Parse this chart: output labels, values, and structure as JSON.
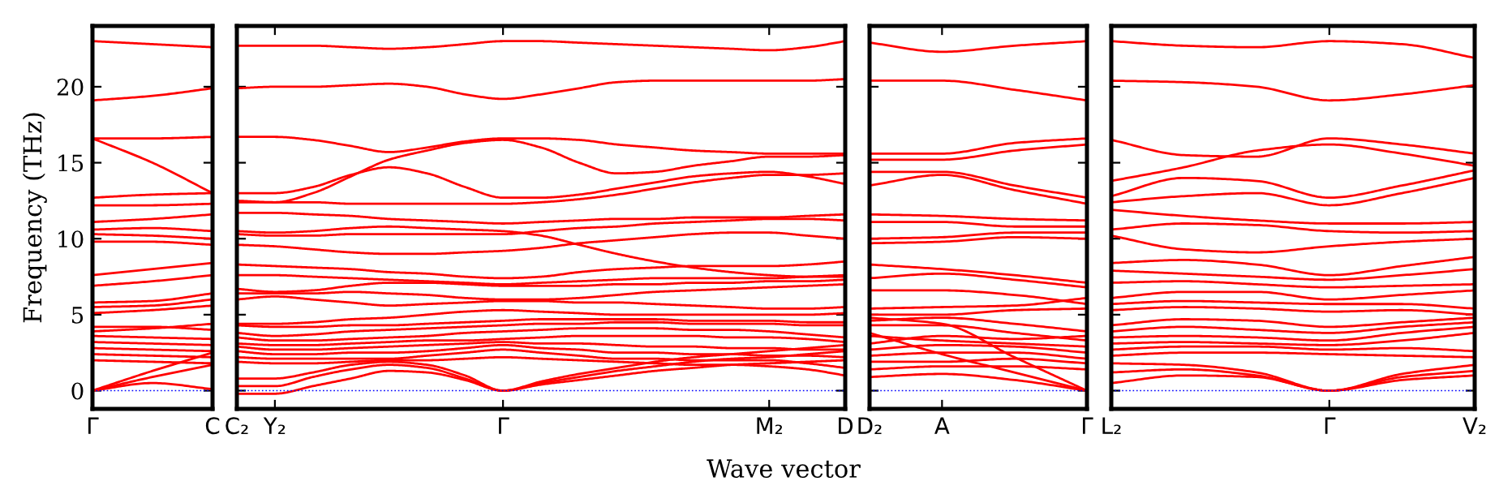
{
  "chart_data": [
    {
      "type": "line",
      "ylabel": "Frequency (THz)",
      "categories": [
        "Γ",
        null,
        "C"
      ],
      "ylim": [
        -1.2,
        24
      ],
      "yticks": [
        0,
        5,
        10,
        15,
        20
      ],
      "ref_lines": [
        {
          "axis": "y",
          "value": 0,
          "color": "#0000ff",
          "line_style": "dotted"
        }
      ],
      "series": [
        {
          "color": "#ff0000",
          "values": [
            23.0,
            22.8,
            22.6
          ]
        },
        {
          "color": "#ff0000",
          "values": [
            19.1,
            19.4,
            19.9
          ]
        },
        {
          "color": "#ff0000",
          "values": [
            16.6,
            16.6,
            16.7
          ]
        },
        {
          "color": "#ff0000",
          "values": [
            16.6,
            15.0,
            13.0
          ]
        },
        {
          "color": "#ff0000",
          "values": [
            12.7,
            12.9,
            13.0
          ]
        },
        {
          "color": "#ff0000",
          "values": [
            12.2,
            12.2,
            12.3
          ]
        },
        {
          "color": "#ff0000",
          "values": [
            11.1,
            11.3,
            11.6
          ]
        },
        {
          "color": "#ff0000",
          "values": [
            10.6,
            10.7,
            10.5
          ]
        },
        {
          "color": "#ff0000",
          "values": [
            10.3,
            10.2,
            10.0
          ]
        },
        {
          "color": "#ff0000",
          "values": [
            9.8,
            9.8,
            9.6
          ]
        },
        {
          "color": "#ff0000",
          "values": [
            7.6,
            8.0,
            8.4
          ]
        },
        {
          "color": "#ff0000",
          "values": [
            6.9,
            7.2,
            7.6
          ]
        },
        {
          "color": "#ff0000",
          "values": [
            5.8,
            5.9,
            6.4
          ]
        },
        {
          "color": "#ff0000",
          "values": [
            5.5,
            5.6,
            6.0
          ]
        },
        {
          "color": "#ff0000",
          "values": [
            5.1,
            5.3,
            5.6
          ]
        },
        {
          "color": "#ff0000",
          "values": [
            4.2,
            4.2,
            4.0
          ]
        },
        {
          "color": "#ff0000",
          "values": [
            3.9,
            4.1,
            4.4
          ]
        },
        {
          "color": "#ff0000",
          "values": [
            3.6,
            3.5,
            3.4
          ]
        },
        {
          "color": "#ff0000",
          "values": [
            3.2,
            3.1,
            3.0
          ]
        },
        {
          "color": "#ff0000",
          "values": [
            2.8,
            2.7,
            2.6
          ]
        },
        {
          "color": "#ff0000",
          "values": [
            2.4,
            2.3,
            2.2
          ]
        },
        {
          "color": "#ff0000",
          "values": [
            2.0,
            1.9,
            1.8
          ]
        },
        {
          "color": "#ff0000",
          "values": [
            0,
            1.3,
            2.5
          ]
        },
        {
          "color": "#ff0000",
          "values": [
            0,
            0.9,
            1.7
          ]
        },
        {
          "color": "#ff0000",
          "values": [
            0,
            0.5,
            0.1
          ]
        }
      ]
    },
    {
      "type": "line",
      "xlabel": "Wave vector",
      "tick_labels": "x",
      "categories": [
        "C₂",
        "Y₂",
        null,
        null,
        null,
        null,
        null,
        "Γ",
        null,
        null,
        null,
        null,
        null,
        null,
        "M₂",
        null,
        "D"
      ],
      "ylim": [
        -1.2,
        24
      ],
      "yticks": [
        0,
        5,
        10,
        15,
        20
      ],
      "ref_lines": [
        {
          "axis": "y",
          "value": 0,
          "color": "#0000ff",
          "line_style": "dotted"
        }
      ],
      "series": [
        {
          "color": "#ff0000",
          "values": [
            22.7,
            22.7,
            22.7,
            22.6,
            22.5,
            22.6,
            22.8,
            23.0,
            23.0,
            22.9,
            22.8,
            22.7,
            22.6,
            22.5,
            22.4,
            22.6,
            23.0
          ]
        },
        {
          "color": "#ff0000",
          "values": [
            19.9,
            20.0,
            20.0,
            20.1,
            20.2,
            20.0,
            19.5,
            19.2,
            19.5,
            19.9,
            20.3,
            20.4,
            20.4,
            20.4,
            20.4,
            20.4,
            20.5
          ]
        },
        {
          "color": "#ff0000",
          "values": [
            16.7,
            16.7,
            16.5,
            16.1,
            15.7,
            16.0,
            16.4,
            16.6,
            16.6,
            16.5,
            16.2,
            16.0,
            15.8,
            15.7,
            15.6,
            15.6,
            15.6
          ]
        },
        {
          "color": "#ff0000",
          "values": [
            12.4,
            12.4,
            13.0,
            14.1,
            15.2,
            15.8,
            16.3,
            16.5,
            16.0,
            15.0,
            14.3,
            14.4,
            14.8,
            15.1,
            15.4,
            15.4,
            15.5
          ]
        },
        {
          "color": "#ff0000",
          "values": [
            13.0,
            13.0,
            13.4,
            14.2,
            14.7,
            14.3,
            13.4,
            12.7,
            12.7,
            12.9,
            13.3,
            13.7,
            14.1,
            14.3,
            14.4,
            14.1,
            13.6
          ]
        },
        {
          "color": "#ff0000",
          "values": [
            12.5,
            12.4,
            12.4,
            12.3,
            12.3,
            12.3,
            12.3,
            12.3,
            12.4,
            12.6,
            12.9,
            13.3,
            13.7,
            14.0,
            14.2,
            14.2,
            14.3
          ]
        },
        {
          "color": "#ff0000",
          "values": [
            11.7,
            11.7,
            11.6,
            11.5,
            11.3,
            11.2,
            11.1,
            11.0,
            11.1,
            11.2,
            11.3,
            11.3,
            11.4,
            11.4,
            11.4,
            11.5,
            11.6
          ]
        },
        {
          "color": "#ff0000",
          "values": [
            10.5,
            10.4,
            10.5,
            10.7,
            10.8,
            10.7,
            10.6,
            10.5,
            10.2,
            9.6,
            9.0,
            8.5,
            8.1,
            7.8,
            7.6,
            7.5,
            7.5
          ]
        },
        {
          "color": "#ff0000",
          "values": [
            10.3,
            10.2,
            10.2,
            10.3,
            10.3,
            10.3,
            10.3,
            10.3,
            10.5,
            10.7,
            10.8,
            11.0,
            11.1,
            11.2,
            11.3,
            11.3,
            11.2
          ]
        },
        {
          "color": "#ff0000",
          "values": [
            9.6,
            9.5,
            9.3,
            9.1,
            9.0,
            9.0,
            9.1,
            9.2,
            9.4,
            9.7,
            9.9,
            10.1,
            10.3,
            10.4,
            10.4,
            10.2,
            10.0
          ]
        },
        {
          "color": "#ff0000",
          "values": [
            8.3,
            8.2,
            8.1,
            8.0,
            7.8,
            7.7,
            7.5,
            7.4,
            7.5,
            7.8,
            8.0,
            8.1,
            8.2,
            8.2,
            8.2,
            8.3,
            8.5
          ]
        },
        {
          "color": "#ff0000",
          "values": [
            7.6,
            7.6,
            7.5,
            7.4,
            7.3,
            7.2,
            7.1,
            7.0,
            7.1,
            7.2,
            7.3,
            7.4,
            7.4,
            7.4,
            7.4,
            7.5,
            7.6
          ]
        },
        {
          "color": "#ff0000",
          "values": [
            6.7,
            6.5,
            6.6,
            6.9,
            7.1,
            7.1,
            7.0,
            6.9,
            6.9,
            6.9,
            7.0,
            7.0,
            7.1,
            7.1,
            7.2,
            7.2,
            7.3
          ]
        },
        {
          "color": "#ff0000",
          "values": [
            6.4,
            6.4,
            6.4,
            6.5,
            6.4,
            6.3,
            6.1,
            6.0,
            6.0,
            6.1,
            6.3,
            6.5,
            6.6,
            6.7,
            6.8,
            6.9,
            7.0
          ]
        },
        {
          "color": "#ff0000",
          "values": [
            6.0,
            6.2,
            6.0,
            5.8,
            5.6,
            5.7,
            5.8,
            5.9,
            5.9,
            5.8,
            5.8,
            5.7,
            5.6,
            5.5,
            5.4,
            5.4,
            5.5
          ]
        },
        {
          "color": "#ff0000",
          "values": [
            4.4,
            4.4,
            4.5,
            4.7,
            4.8,
            5.0,
            5.2,
            5.3,
            5.2,
            5.1,
            5.0,
            5.0,
            5.0,
            5.0,
            5.0,
            5.0,
            5.1
          ]
        },
        {
          "color": "#ff0000",
          "values": [
            4.3,
            4.2,
            4.2,
            4.3,
            4.3,
            4.4,
            4.5,
            4.6,
            4.7,
            4.7,
            4.7,
            4.7,
            4.6,
            4.6,
            4.6,
            4.5,
            4.5
          ]
        },
        {
          "color": "#ff0000",
          "values": [
            3.8,
            3.6,
            3.7,
            3.9,
            4.0,
            4.1,
            4.2,
            4.3,
            4.4,
            4.4,
            4.5,
            4.5,
            4.4,
            4.4,
            4.4,
            4.3,
            4.3
          ]
        },
        {
          "color": "#ff0000",
          "values": [
            3.5,
            3.3,
            3.3,
            3.4,
            3.5,
            3.6,
            3.8,
            3.9,
            4.0,
            4.1,
            4.1,
            4.1,
            4.0,
            4.0,
            3.9,
            3.7,
            3.5
          ]
        },
        {
          "color": "#ff0000",
          "values": [
            3.1,
            3.0,
            3.0,
            3.1,
            3.2,
            3.3,
            3.3,
            3.4,
            3.5,
            3.6,
            3.6,
            3.6,
            3.6,
            3.5,
            3.5,
            3.4,
            3.2
          ]
        },
        {
          "color": "#ff0000",
          "values": [
            2.9,
            2.7,
            2.7,
            2.8,
            2.9,
            3.0,
            3.1,
            3.2,
            3.1,
            3.1,
            3.0,
            2.9,
            2.9,
            2.8,
            2.8,
            2.7,
            2.7
          ]
        },
        {
          "color": "#ff0000",
          "values": [
            2.6,
            2.4,
            2.4,
            2.5,
            2.5,
            2.6,
            2.8,
            3.0,
            2.8,
            2.7,
            2.5,
            2.5,
            2.4,
            2.4,
            2.3,
            2.3,
            2.2
          ]
        },
        {
          "color": "#ff0000",
          "values": [
            2.2,
            2.1,
            2.1,
            2.1,
            2.1,
            2.3,
            2.5,
            2.7,
            2.5,
            2.3,
            2.1,
            2.1,
            2.0,
            2.0,
            2.0,
            1.8,
            1.5
          ]
        },
        {
          "color": "#ff0000",
          "values": [
            1.9,
            1.8,
            1.8,
            1.9,
            2.0,
            2.0,
            2.1,
            2.2,
            2.1,
            2.0,
            1.9,
            1.8,
            1.7,
            1.7,
            1.6,
            1.4,
            1.0
          ]
        },
        {
          "color": "#ff0000",
          "values": [
            -0.2,
            -0.2,
            0.3,
            0.8,
            1.3,
            1.2,
            0.7,
            0,
            0.5,
            0.9,
            1.3,
            1.6,
            1.9,
            2.1,
            2.2,
            2.4,
            2.6
          ]
        },
        {
          "color": "#ff0000",
          "values": [
            0.3,
            0.3,
            0.9,
            1.4,
            1.7,
            1.5,
            0.8,
            0,
            0.4,
            0.7,
            1.0,
            1.3,
            1.5,
            1.7,
            1.8,
            1.9,
            2.0
          ]
        },
        {
          "color": "#ff0000",
          "values": [
            0.8,
            0.8,
            1.2,
            1.7,
            1.9,
            1.7,
            1.0,
            0,
            0.6,
            1.1,
            1.5,
            1.9,
            2.2,
            2.4,
            2.6,
            2.8,
            3.0
          ]
        }
      ]
    },
    {
      "type": "line",
      "tick_labels": "x",
      "categories": [
        "D₂",
        "A",
        null,
        "Γ"
      ],
      "ylim": [
        -1.2,
        24
      ],
      "yticks": [
        0,
        5,
        10,
        15,
        20
      ],
      "ref_lines": [
        {
          "axis": "y",
          "value": 0,
          "color": "#0000ff",
          "line_style": "dotted"
        }
      ],
      "series": [
        {
          "color": "#ff0000",
          "values": [
            22.9,
            22.3,
            22.7,
            23.0
          ]
        },
        {
          "color": "#ff0000",
          "values": [
            20.4,
            20.4,
            19.8,
            19.1
          ]
        },
        {
          "color": "#ff0000",
          "values": [
            15.6,
            15.6,
            16.3,
            16.6
          ]
        },
        {
          "color": "#ff0000",
          "values": [
            15.2,
            15.2,
            15.8,
            16.2
          ]
        },
        {
          "color": "#ff0000",
          "values": [
            14.4,
            14.4,
            13.5,
            12.7
          ]
        },
        {
          "color": "#ff0000",
          "values": [
            13.5,
            14.2,
            13.2,
            12.3
          ]
        },
        {
          "color": "#ff0000",
          "values": [
            11.6,
            11.5,
            11.3,
            11.2
          ]
        },
        {
          "color": "#ff0000",
          "values": [
            11.1,
            11.1,
            10.8,
            10.8
          ]
        },
        {
          "color": "#ff0000",
          "values": [
            10.0,
            10.1,
            10.4,
            10.4
          ]
        },
        {
          "color": "#ff0000",
          "values": [
            9.7,
            9.8,
            10.1,
            10.0
          ]
        },
        {
          "color": "#ff0000",
          "values": [
            8.3,
            8.0,
            7.6,
            7.1
          ]
        },
        {
          "color": "#ff0000",
          "values": [
            7.4,
            7.7,
            7.3,
            6.8
          ]
        },
        {
          "color": "#ff0000",
          "values": [
            6.6,
            6.6,
            6.3,
            5.7
          ]
        },
        {
          "color": "#ff0000",
          "values": [
            5.4,
            5.5,
            5.6,
            6.1
          ]
        },
        {
          "color": "#ff0000",
          "values": [
            5.0,
            5.0,
            5.3,
            5.4
          ]
        },
        {
          "color": "#ff0000",
          "values": [
            4.6,
            4.8,
            4.4,
            3.9
          ]
        },
        {
          "color": "#ff0000",
          "values": [
            4.3,
            4.3,
            3.8,
            3.3
          ]
        },
        {
          "color": "#ff0000",
          "values": [
            3.6,
            3.3,
            3.1,
            2.9
          ]
        },
        {
          "color": "#ff0000",
          "values": [
            3.1,
            3.6,
            3.4,
            3.6
          ]
        },
        {
          "color": "#ff0000",
          "values": [
            2.7,
            3.0,
            2.9,
            2.5
          ]
        },
        {
          "color": "#ff0000",
          "values": [
            2.3,
            2.5,
            2.5,
            2.1
          ]
        },
        {
          "color": "#ff0000",
          "values": [
            1.9,
            1.9,
            2.1,
            1.8
          ]
        },
        {
          "color": "#ff0000",
          "values": [
            1.4,
            1.6,
            1.6,
            1.4
          ]
        },
        {
          "color": "#ff0000",
          "values": [
            0.9,
            1.1,
            0.7,
            0
          ]
        },
        {
          "color": "#ff0000",
          "values": [
            4.8,
            4.4,
            2.2,
            0
          ]
        },
        {
          "color": "#ff0000",
          "values": [
            3.8,
            2.4,
            1.2,
            0
          ]
        }
      ]
    },
    {
      "type": "line",
      "tick_labels": "x",
      "categories": [
        "L₂",
        null,
        null,
        "Γ",
        null,
        "V₂"
      ],
      "ylim": [
        -1.2,
        24
      ],
      "yticks": [
        0,
        5,
        10,
        15,
        20
      ],
      "ref_lines": [
        {
          "axis": "y",
          "value": 0,
          "color": "#0000ff",
          "line_style": "dotted"
        }
      ],
      "series": [
        {
          "color": "#ff0000",
          "values": [
            23.0,
            22.7,
            22.6,
            23.0,
            22.8,
            21.9
          ]
        },
        {
          "color": "#ff0000",
          "values": [
            20.4,
            20.3,
            20.0,
            19.1,
            19.5,
            20.1
          ]
        },
        {
          "color": "#ff0000",
          "values": [
            16.5,
            15.5,
            15.4,
            16.6,
            16.2,
            15.6
          ]
        },
        {
          "color": "#ff0000",
          "values": [
            13.8,
            14.7,
            15.8,
            16.2,
            15.6,
            14.8
          ]
        },
        {
          "color": "#ff0000",
          "values": [
            12.8,
            14.0,
            13.8,
            12.7,
            13.5,
            14.5
          ]
        },
        {
          "color": "#ff0000",
          "values": [
            12.4,
            12.8,
            13.0,
            12.2,
            13.0,
            14.0
          ]
        },
        {
          "color": "#ff0000",
          "values": [
            11.9,
            11.5,
            11.2,
            11.0,
            11.0,
            11.1
          ]
        },
        {
          "color": "#ff0000",
          "values": [
            10.6,
            11.0,
            10.9,
            10.5,
            10.4,
            10.5
          ]
        },
        {
          "color": "#ff0000",
          "values": [
            10.2,
            9.3,
            9.1,
            9.5,
            9.8,
            10.0
          ]
        },
        {
          "color": "#ff0000",
          "values": [
            8.4,
            8.6,
            8.3,
            7.6,
            8.2,
            8.8
          ]
        },
        {
          "color": "#ff0000",
          "values": [
            7.9,
            7.7,
            7.5,
            7.3,
            7.6,
            8.0
          ]
        },
        {
          "color": "#ff0000",
          "values": [
            7.1,
            7.2,
            7.0,
            6.8,
            6.9,
            7.0
          ]
        },
        {
          "color": "#ff0000",
          "values": [
            6.1,
            6.5,
            6.5,
            6.0,
            6.3,
            6.6
          ]
        },
        {
          "color": "#ff0000",
          "values": [
            5.7,
            5.9,
            5.8,
            5.7,
            5.7,
            5.4
          ]
        },
        {
          "color": "#ff0000",
          "values": [
            5.3,
            5.5,
            5.4,
            5.2,
            5.3,
            5.0
          ]
        },
        {
          "color": "#ff0000",
          "values": [
            4.3,
            4.7,
            4.6,
            4.2,
            4.5,
            4.8
          ]
        },
        {
          "color": "#ff0000",
          "values": [
            3.9,
            4.2,
            4.0,
            3.8,
            4.2,
            4.5
          ]
        },
        {
          "color": "#ff0000",
          "values": [
            3.5,
            3.6,
            3.5,
            3.3,
            3.8,
            4.2
          ]
        },
        {
          "color": "#ff0000",
          "values": [
            3.1,
            3.2,
            3.1,
            3.0,
            3.3,
            3.8
          ]
        },
        {
          "color": "#ff0000",
          "values": [
            2.7,
            2.9,
            2.9,
            2.7,
            2.8,
            2.6
          ]
        },
        {
          "color": "#ff0000",
          "values": [
            2.3,
            2.5,
            2.5,
            2.4,
            2.3,
            2.2
          ]
        },
        {
          "color": "#ff0000",
          "values": [
            0.5,
            1.0,
            0.9,
            0,
            1.1,
            1.7
          ]
        },
        {
          "color": "#ff0000",
          "values": [
            1.2,
            1.4,
            1.0,
            0,
            0.9,
            1.3
          ]
        },
        {
          "color": "#ff0000",
          "values": [
            1.8,
            1.7,
            1.2,
            0,
            0.7,
            1.0
          ]
        }
      ]
    }
  ]
}
